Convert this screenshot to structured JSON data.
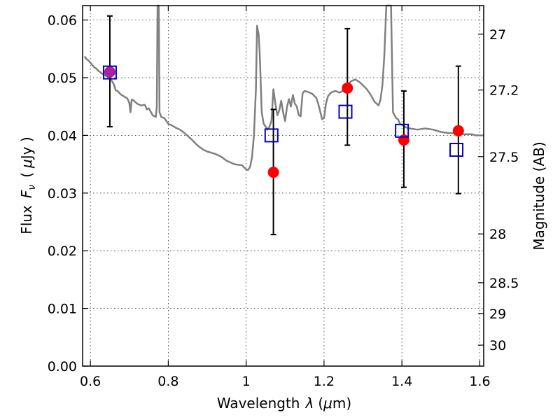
{
  "chart_data": {
    "type": "scatter",
    "xlabel": "Wavelength",
    "xlabel_symbol": "λ",
    "xlabel_unit_open": "(",
    "xlabel_unit_mu": "μ",
    "xlabel_unit_rest": "m)",
    "ylabel": "Flux",
    "ylabel_symbol": "F",
    "ylabel_symbol_sub": "ν",
    "ylabel_unit_open": "(",
    "ylabel_unit_mu": "μ",
    "ylabel_unit_rest": "Jy )",
    "y2label": "Magnitude (AB)",
    "xlim": [
      0.58,
      1.61
    ],
    "ylim": [
      0.0,
      0.0625
    ],
    "xticks": [
      0.6,
      0.8,
      1.0,
      1.2,
      1.4,
      1.6
    ],
    "xtick_labels": [
      "0.6",
      "0.8",
      "1",
      "1.2",
      "1.4",
      "1.6"
    ],
    "yticks": [
      0.0,
      0.01,
      0.02,
      0.03,
      0.04,
      0.05,
      0.06
    ],
    "ytick_labels": [
      "0.00",
      "0.01",
      "0.02",
      "0.03",
      "0.04",
      "0.05",
      "0.06"
    ],
    "y2ticks": [
      {
        "mag": 27,
        "label": "27"
      },
      {
        "mag": 27.2,
        "label": "27.2"
      },
      {
        "mag": 27.5,
        "label": "27.5"
      },
      {
        "mag": 28,
        "label": "28"
      },
      {
        "mag": 28.5,
        "label": "28.5"
      },
      {
        "mag": 29,
        "label": "29"
      },
      {
        "mag": 30,
        "label": "30"
      }
    ],
    "grid": true,
    "colors": {
      "spectrum": "#808080",
      "observed": "#ff0000",
      "model": "#0000cc",
      "overlap": "#aa2299",
      "errorbar": "#000000"
    },
    "series": [
      {
        "kind": "spectrum-line",
        "points": [
          [
            0.585,
            0.0537
          ],
          [
            0.59,
            0.0532
          ],
          [
            0.595,
            0.053
          ],
          [
            0.6,
            0.0526
          ],
          [
            0.605,
            0.0522
          ],
          [
            0.61,
            0.0518
          ],
          [
            0.615,
            0.0516
          ],
          [
            0.62,
            0.0512
          ],
          [
            0.625,
            0.051
          ],
          [
            0.63,
            0.0507
          ],
          [
            0.64,
            0.0503
          ],
          [
            0.65,
            0.05
          ],
          [
            0.66,
            0.0489
          ],
          [
            0.665,
            0.0478
          ],
          [
            0.67,
            0.0477
          ],
          [
            0.675,
            0.0473
          ],
          [
            0.68,
            0.047
          ],
          [
            0.69,
            0.0466
          ],
          [
            0.695,
            0.0464
          ],
          [
            0.7,
            0.0456
          ],
          [
            0.703,
            0.044
          ],
          [
            0.706,
            0.0462
          ],
          [
            0.71,
            0.0461
          ],
          [
            0.72,
            0.0455
          ],
          [
            0.73,
            0.0452
          ],
          [
            0.74,
            0.0453
          ],
          [
            0.745,
            0.0445
          ],
          [
            0.75,
            0.0447
          ],
          [
            0.76,
            0.0435
          ],
          [
            0.768,
            0.0432
          ],
          [
            0.7705,
            0.045
          ],
          [
            0.7725,
            0.0625
          ],
          [
            0.7755,
            0.0625
          ],
          [
            0.7775,
            0.044
          ],
          [
            0.782,
            0.0432
          ],
          [
            0.79,
            0.043
          ],
          [
            0.8,
            0.042
          ],
          [
            0.81,
            0.0417
          ],
          [
            0.82,
            0.0413
          ],
          [
            0.83,
            0.041
          ],
          [
            0.84,
            0.0405
          ],
          [
            0.85,
            0.0399
          ],
          [
            0.86,
            0.0393
          ],
          [
            0.87,
            0.0386
          ],
          [
            0.88,
            0.038
          ],
          [
            0.89,
            0.0375
          ],
          [
            0.9,
            0.0372
          ],
          [
            0.91,
            0.037
          ],
          [
            0.92,
            0.0368
          ],
          [
            0.93,
            0.0365
          ],
          [
            0.94,
            0.0361
          ],
          [
            0.95,
            0.0356
          ],
          [
            0.96,
            0.0353
          ],
          [
            0.97,
            0.035
          ],
          [
            0.98,
            0.0349
          ],
          [
            0.99,
            0.0348
          ],
          [
            0.995,
            0.0344
          ],
          [
            1.0,
            0.0341
          ],
          [
            1.005,
            0.034
          ],
          [
            1.01,
            0.0345
          ],
          [
            1.015,
            0.0362
          ],
          [
            1.02,
            0.04
          ],
          [
            1.025,
            0.048
          ],
          [
            1.028,
            0.059
          ],
          [
            1.032,
            0.0575
          ],
          [
            1.035,
            0.054
          ],
          [
            1.04,
            0.044
          ],
          [
            1.045,
            0.042
          ],
          [
            1.05,
            0.0415
          ],
          [
            1.055,
            0.041
          ],
          [
            1.06,
            0.0415
          ],
          [
            1.065,
            0.0425
          ],
          [
            1.07,
            0.048
          ],
          [
            1.075,
            0.0455
          ],
          [
            1.08,
            0.0435
          ],
          [
            1.085,
            0.0443
          ],
          [
            1.09,
            0.046
          ],
          [
            1.095,
            0.044
          ],
          [
            1.1,
            0.0425
          ],
          [
            1.105,
            0.045
          ],
          [
            1.11,
            0.0463
          ],
          [
            1.115,
            0.045
          ],
          [
            1.12,
            0.047
          ],
          [
            1.125,
            0.0455
          ],
          [
            1.13,
            0.045
          ],
          [
            1.135,
            0.0435
          ],
          [
            1.14,
            0.0433
          ],
          [
            1.145,
            0.0473
          ],
          [
            1.15,
            0.0477
          ],
          [
            1.16,
            0.0475
          ],
          [
            1.17,
            0.0472
          ],
          [
            1.18,
            0.0465
          ],
          [
            1.185,
            0.0455
          ],
          [
            1.19,
            0.0442
          ],
          [
            1.195,
            0.0428
          ],
          [
            1.2,
            0.043
          ],
          [
            1.205,
            0.0455
          ],
          [
            1.21,
            0.0468
          ],
          [
            1.215,
            0.0472
          ],
          [
            1.22,
            0.0475
          ],
          [
            1.23,
            0.0477
          ],
          [
            1.24,
            0.0474
          ],
          [
            1.25,
            0.0478
          ],
          [
            1.26,
            0.0488
          ],
          [
            1.27,
            0.0494
          ],
          [
            1.28,
            0.0497
          ],
          [
            1.29,
            0.0493
          ],
          [
            1.3,
            0.0487
          ],
          [
            1.31,
            0.048
          ],
          [
            1.32,
            0.047
          ],
          [
            1.33,
            0.0458
          ],
          [
            1.34,
            0.0452
          ],
          [
            1.345,
            0.0462
          ],
          [
            1.35,
            0.0488
          ],
          [
            1.355,
            0.054
          ],
          [
            1.36,
            0.0625
          ],
          [
            1.372,
            0.0625
          ],
          [
            1.377,
            0.044
          ],
          [
            1.385,
            0.043
          ],
          [
            1.39,
            0.0428
          ],
          [
            1.395,
            0.042
          ],
          [
            1.4,
            0.0418
          ],
          [
            1.405,
            0.0416
          ],
          [
            1.41,
            0.0414
          ],
          [
            1.42,
            0.0412
          ],
          [
            1.44,
            0.041
          ],
          [
            1.46,
            0.0412
          ],
          [
            1.48,
            0.041
          ],
          [
            1.5,
            0.0406
          ],
          [
            1.52,
            0.0404
          ],
          [
            1.54,
            0.0404
          ],
          [
            1.56,
            0.0402
          ],
          [
            1.58,
            0.0402
          ],
          [
            1.59,
            0.04
          ],
          [
            1.6,
            0.04
          ],
          [
            1.61,
            0.04
          ]
        ]
      },
      {
        "kind": "observed-points",
        "points": [
          {
            "x": 0.65,
            "y": 0.051,
            "yerr_lo": 0.0415,
            "yerr_hi": 0.0607
          },
          {
            "x": 1.07,
            "y": 0.0336,
            "yerr_lo": 0.0228,
            "yerr_hi": 0.0445
          },
          {
            "x": 1.26,
            "y": 0.0482,
            "yerr_lo": 0.0383,
            "yerr_hi": 0.0585
          },
          {
            "x": 1.405,
            "y": 0.0392,
            "yerr_lo": 0.031,
            "yerr_hi": 0.0477
          },
          {
            "x": 1.545,
            "y": 0.0408,
            "yerr_lo": 0.0299,
            "yerr_hi": 0.052
          }
        ]
      },
      {
        "kind": "model-squares",
        "points": [
          {
            "x": 0.65,
            "y": 0.0509
          },
          {
            "x": 1.065,
            "y": 0.04
          },
          {
            "x": 1.255,
            "y": 0.0441
          },
          {
            "x": 1.4,
            "y": 0.0408
          },
          {
            "x": 1.54,
            "y": 0.0375
          }
        ]
      }
    ]
  }
}
